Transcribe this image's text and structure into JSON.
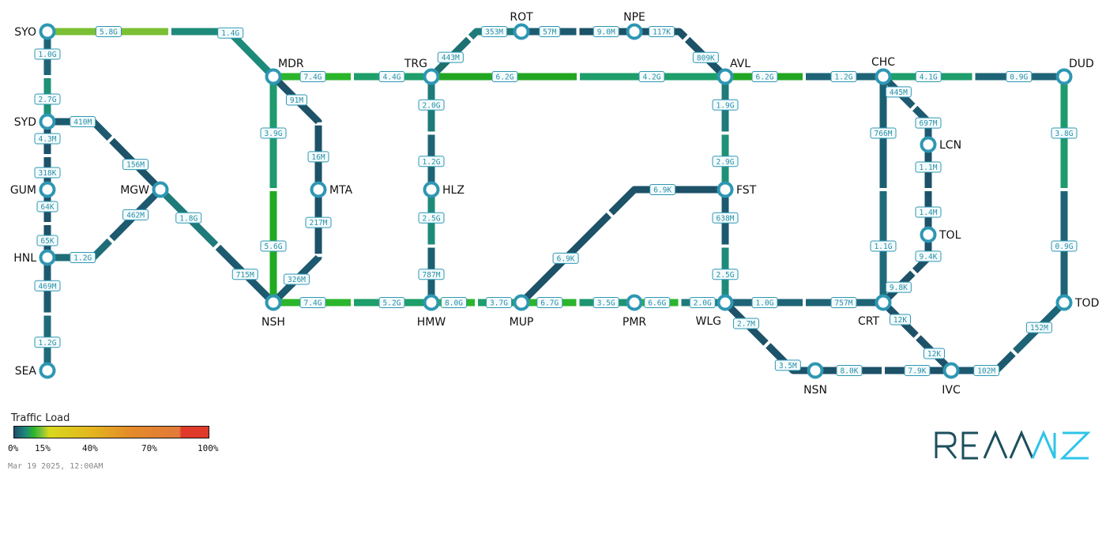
{
  "nodes": [
    "SYO",
    "SYD",
    "GUM",
    "HNL",
    "SEA",
    "MGW",
    "MDR",
    "NSH",
    "MTA",
    "TRG",
    "HLZ",
    "HMW",
    "ROT",
    "NPE",
    "AVL",
    "FST",
    "MUP",
    "PMR",
    "WLG",
    "CHC",
    "DUD",
    "LCN",
    "TOL",
    "CRT",
    "NSN",
    "IVC",
    "TOD"
  ],
  "links": [
    {
      "from": "SYO",
      "to": "MDR",
      "a": "5.8G",
      "b": "1.4G",
      "ca": "#7bbf35",
      "cb": "#1e8a7a"
    },
    {
      "from": "SYO",
      "to": "SYD",
      "a": "1.0G",
      "b": "2.7G",
      "ca": "#1f6476",
      "cb": "#1e9176"
    },
    {
      "from": "SYD",
      "to": "GUM",
      "a": "4.3M",
      "b": "318K",
      "ca": "#1d5268",
      "cb": "#1d5268"
    },
    {
      "from": "GUM",
      "to": "HNL",
      "a": "64K",
      "b": "65K",
      "ca": "#1d5268",
      "cb": "#1d5268"
    },
    {
      "from": "HNL",
      "to": "SEA",
      "a": "469M",
      "b": "1.2G",
      "ca": "#1d5a70",
      "cb": "#1f6b7a"
    },
    {
      "from": "SYD",
      "to": "MGW",
      "a": "410M",
      "b": "156M",
      "ca": "#1d5a70",
      "cb": "#1d5268"
    },
    {
      "from": "HNL",
      "to": "MGW",
      "a": "1.2G",
      "b": "462M",
      "ca": "#1f6d78",
      "cb": "#1d5a70"
    },
    {
      "from": "MGW",
      "to": "NSH",
      "a": "1.8G",
      "b": "715M",
      "ca": "#1f7a7a",
      "cb": "#1d5a70"
    },
    {
      "from": "MDR",
      "to": "MTA",
      "a": "91M",
      "b": "16M",
      "ca": "#1d5268",
      "cb": "#1d5268"
    },
    {
      "from": "MTA",
      "to": "NSH",
      "a": "217M",
      "b": "326M",
      "ca": "#1d5268",
      "cb": "#1d5a70"
    },
    {
      "from": "MDR",
      "to": "NSH",
      "a": "3.9G",
      "b": "5.6G",
      "ca": "#1e9a6e",
      "cb": "#22aa22"
    },
    {
      "from": "MDR",
      "to": "TRG",
      "a": "7.4G",
      "b": "4.4G",
      "ca": "#2bb52b",
      "cb": "#1e9e6a"
    },
    {
      "from": "NSH",
      "to": "HMW",
      "a": "7.4G",
      "b": "5.2G",
      "ca": "#2bb52b",
      "cb": "#1e9e6a"
    },
    {
      "from": "TRG",
      "to": "ROT",
      "a": "443M",
      "b": "353M",
      "ca": "#1f7070",
      "cb": "#1f7a7a"
    },
    {
      "from": "ROT",
      "to": "NPE",
      "a": "57M",
      "b": "9.0M",
      "ca": "#1d5a70",
      "cb": "#1d5268"
    },
    {
      "from": "NPE",
      "to": "AVL",
      "a": "117K",
      "b": "809K",
      "ca": "#1d5268",
      "cb": "#1d5268"
    },
    {
      "from": "TRG",
      "to": "AVL",
      "a": "6.2G",
      "b": "4.2G",
      "ca": "#22a622",
      "cb": "#1e9e6a"
    },
    {
      "from": "TRG",
      "to": "HLZ",
      "a": "2.0G",
      "b": "1.2G",
      "ca": "#1f7a7a",
      "cb": "#1f6476"
    },
    {
      "from": "HLZ",
      "to": "HMW",
      "a": "2.5G",
      "b": "787M",
      "ca": "#1e8a7a",
      "cb": "#1d5f72"
    },
    {
      "from": "HMW",
      "to": "MUP",
      "a": "8.0G",
      "b": "3.7G",
      "ca": "#2bb52b",
      "cb": "#1e9e6a"
    },
    {
      "from": "MUP",
      "to": "PMR",
      "a": "6.7G",
      "b": "3.5G",
      "ca": "#2bb52b",
      "cb": "#1e9470"
    },
    {
      "from": "PMR",
      "to": "WLG",
      "a": "6.6G",
      "b": "2.0G",
      "ca": "#2bb52b",
      "cb": "#1f7a7a"
    },
    {
      "from": "MUP",
      "to": "FST",
      "a": "6.9K",
      "b": "6.9K",
      "ca": "#1d5268",
      "cb": "#1d5268"
    },
    {
      "from": "AVL",
      "to": "FST",
      "a": "1.9G",
      "b": "2.9G",
      "ca": "#1f7a7a",
      "cb": "#1e9176"
    },
    {
      "from": "FST",
      "to": "WLG",
      "a": "638M",
      "b": "2.5G",
      "ca": "#1d5a70",
      "cb": "#1e8a7a"
    },
    {
      "from": "AVL",
      "to": "CHC",
      "a": "6.2G",
      "b": "1.2G",
      "ca": "#22a622",
      "cb": "#1f6476"
    },
    {
      "from": "WLG",
      "to": "CRT",
      "a": "1.0G",
      "b": "757M",
      "ca": "#1f6476",
      "cb": "#1f6476"
    },
    {
      "from": "WLG",
      "to": "NSN",
      "a": "2.7M",
      "b": "3.5M",
      "ca": "#1d5268",
      "cb": "#1d5268"
    },
    {
      "from": "CHC",
      "to": "DUD",
      "a": "4.1G",
      "b": "0.9G",
      "ca": "#1e9e6a",
      "cb": "#1f6476"
    },
    {
      "from": "CHC",
      "to": "LCN",
      "a": "445M",
      "b": "697M",
      "ca": "#1d5a70",
      "cb": "#1d5a70"
    },
    {
      "from": "LCN",
      "to": "TOL",
      "a": "1.1M",
      "b": "1.4M",
      "ca": "#1d5268",
      "cb": "#1d5268"
    },
    {
      "from": "TOL",
      "to": "CRT",
      "a": "9.4K",
      "b": "9.8K",
      "ca": "#1d5268",
      "cb": "#1d5268"
    },
    {
      "from": "CHC",
      "to": "CRT",
      "a": "766M",
      "b": "1.1G",
      "ca": "#1d5f72",
      "cb": "#1f6b7a"
    },
    {
      "from": "DUD",
      "to": "TOD",
      "a": "3.8G",
      "b": "0.9G",
      "ca": "#1e9a6e",
      "cb": "#1f6476"
    },
    {
      "from": "CRT",
      "to": "IVC",
      "a": "12K",
      "b": "12K",
      "ca": "#1d5268",
      "cb": "#1d5268"
    },
    {
      "from": "NSN",
      "to": "IVC",
      "a": "8.0K",
      "b": "7.9K",
      "ca": "#1d5268",
      "cb": "#1d5268"
    },
    {
      "from": "IVC",
      "to": "TOD",
      "a": "102M",
      "b": "152M",
      "ca": "#1d5a70",
      "cb": "#1f6476"
    }
  ],
  "colors": {
    "node_ring": "#2e97b3",
    "node_fill": "#ffffff",
    "label_border": "#2e97b3"
  },
  "legend": {
    "title": "Traffic Load",
    "ticks": [
      "0%",
      "15%",
      "40%",
      "70%",
      "100%"
    ],
    "timestamp": "Mar 19 2025, 12:00AM"
  },
  "logo": {
    "text": "REANNZ",
    "dark_color": "#1d4f5e",
    "accent_color": "#2ec4ea"
  }
}
